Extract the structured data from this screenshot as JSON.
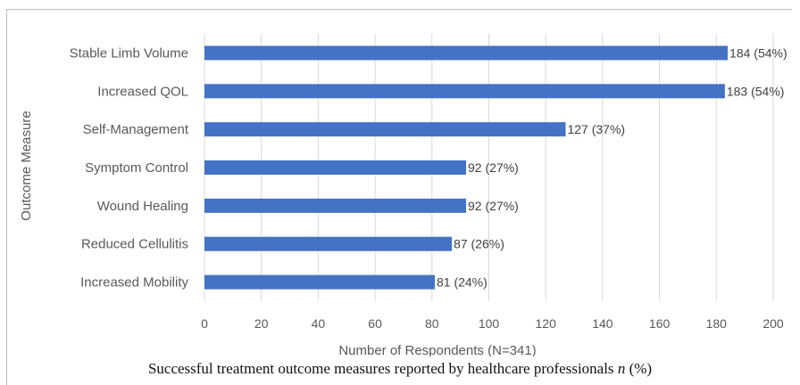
{
  "caption": {
    "text": "Successful treatment outcome measures reported by healthcare professionals",
    "n_symbol": "n",
    "suffix": "(%)"
  },
  "colors": {
    "bar": "#4472c4",
    "grid": "#d9d9d9",
    "text": "#595959"
  },
  "chart_data": {
    "type": "bar",
    "orientation": "horizontal",
    "title": "",
    "xlabel": "Number of Respondents (N=341)",
    "ylabel": "Outcome Measure",
    "categories": [
      "Stable Limb Volume",
      "Increased QOL",
      "Self-Management",
      "Symptom Control",
      "Wound Healing",
      "Reduced Cellulitis",
      "Increased Mobility"
    ],
    "values": [
      184,
      183,
      127,
      92,
      92,
      87,
      81
    ],
    "data_labels": [
      "184 (54%)",
      "183 (54%)",
      "127 (37%)",
      "92 (27%)",
      "92 (27%)",
      "87 (26%)",
      "81 (24%)"
    ],
    "xlim": [
      0,
      200
    ],
    "xticks": [
      0,
      20,
      40,
      60,
      80,
      100,
      120,
      140,
      160,
      180,
      200
    ],
    "grid": true,
    "legend": "none"
  }
}
